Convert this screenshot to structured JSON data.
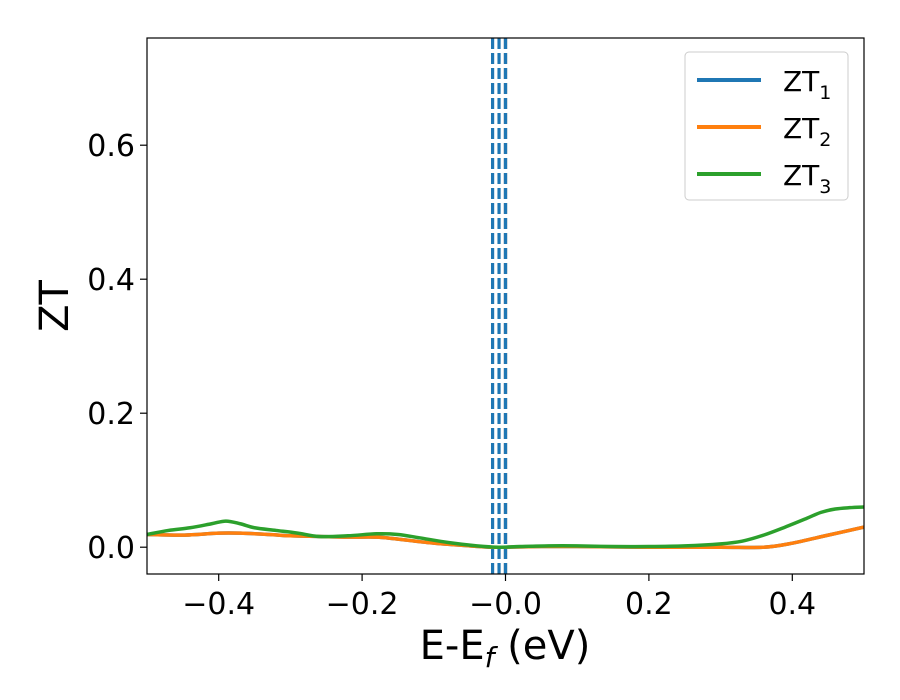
{
  "chart_data": {
    "type": "line",
    "xlabel": "E-E",
    "xlabel_sub": "f",
    "xlabel_unit": " (eV)",
    "ylabel": "ZT",
    "xlim": [
      -0.5,
      0.5
    ],
    "ylim": [
      -0.04,
      0.76
    ],
    "x_ticks": [
      -0.4,
      -0.2,
      0.0,
      0.2,
      0.4
    ],
    "x_tick_labels": [
      "−0.4",
      "−0.2",
      "−0.0",
      "0.2",
      "0.4"
    ],
    "y_ticks": [
      0.0,
      0.2,
      0.4,
      0.6
    ],
    "y_tick_labels": [
      "0.0",
      "0.2",
      "0.4",
      "0.6"
    ],
    "grid": false,
    "legend_position": "top-right",
    "vertical_lines": [
      {
        "x": -0.018,
        "style": "dashed",
        "color": "#1f77b4"
      },
      {
        "x": -0.009,
        "style": "dashed",
        "color": "#1f77b4"
      },
      {
        "x": 0.0,
        "style": "dashed",
        "color": "#000000"
      },
      {
        "x": 0.0,
        "style": "dashed",
        "color": "#1f77b4"
      }
    ],
    "series": [
      {
        "name": "ZT",
        "name_sub": "1",
        "color": "#1f77b4",
        "x": [
          -0.5,
          -0.45,
          -0.4,
          -0.37,
          -0.33,
          -0.3,
          -0.26,
          -0.22,
          -0.18,
          -0.15,
          -0.1,
          -0.05,
          -0.02,
          0.0,
          0.05,
          0.1,
          0.2,
          0.3,
          0.36,
          0.4,
          0.45,
          0.5
        ],
        "y": [
          0.019,
          0.018,
          0.021,
          0.021,
          0.019,
          0.017,
          0.016,
          0.015,
          0.015,
          0.012,
          0.006,
          0.002,
          0.0,
          0.0,
          0.001,
          0.001,
          0.0,
          0.0,
          0.0,
          0.006,
          0.018,
          0.03
        ]
      },
      {
        "name": "ZT",
        "name_sub": "2",
        "color": "#ff7f0e",
        "x": [
          -0.5,
          -0.45,
          -0.4,
          -0.37,
          -0.33,
          -0.3,
          -0.26,
          -0.22,
          -0.18,
          -0.15,
          -0.1,
          -0.05,
          -0.02,
          0.0,
          0.05,
          0.1,
          0.2,
          0.3,
          0.36,
          0.4,
          0.45,
          0.5
        ],
        "y": [
          0.019,
          0.018,
          0.021,
          0.021,
          0.019,
          0.017,
          0.016,
          0.015,
          0.015,
          0.012,
          0.006,
          0.002,
          0.0,
          0.0,
          0.001,
          0.001,
          0.0,
          0.0,
          0.0,
          0.006,
          0.018,
          0.03
        ]
      },
      {
        "name": "ZT",
        "name_sub": "3",
        "color": "#2ca02c",
        "x": [
          -0.5,
          -0.47,
          -0.44,
          -0.41,
          -0.39,
          -0.37,
          -0.35,
          -0.32,
          -0.29,
          -0.26,
          -0.22,
          -0.18,
          -0.15,
          -0.12,
          -0.08,
          -0.04,
          -0.01,
          0.02,
          0.06,
          0.1,
          0.15,
          0.2,
          0.25,
          0.3,
          0.33,
          0.36,
          0.39,
          0.42,
          0.44,
          0.46,
          0.48,
          0.5
        ],
        "y": [
          0.019,
          0.025,
          0.029,
          0.035,
          0.039,
          0.035,
          0.029,
          0.025,
          0.021,
          0.016,
          0.017,
          0.02,
          0.019,
          0.014,
          0.007,
          0.002,
          0.0,
          0.001,
          0.002,
          0.002,
          0.001,
          0.001,
          0.002,
          0.005,
          0.009,
          0.018,
          0.03,
          0.043,
          0.052,
          0.057,
          0.059,
          0.06
        ]
      }
    ]
  }
}
